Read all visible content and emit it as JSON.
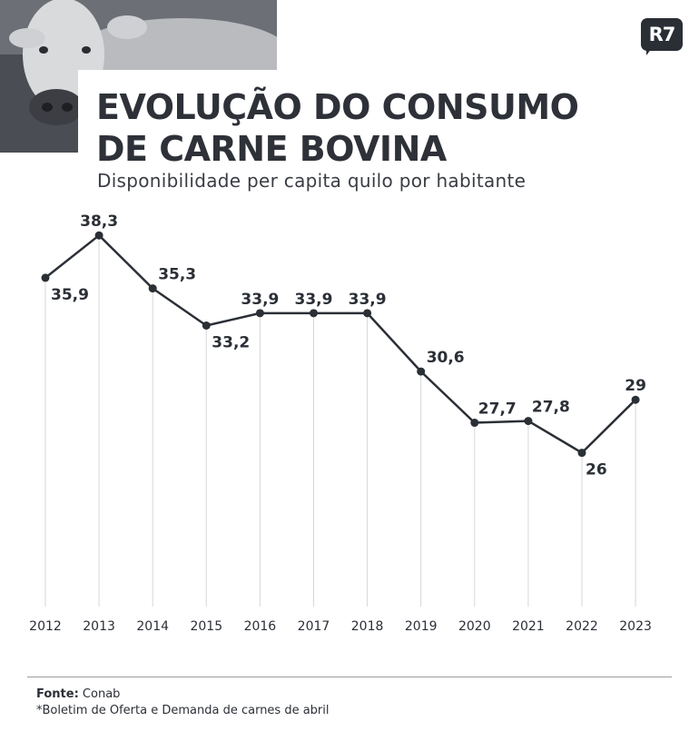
{
  "header": {
    "title": "EVOLUÇÃO DO CONSUMO\nDE CARNE BOVINA",
    "subtitle": "Disponibilidade per capita quilo por habitante"
  },
  "logo": {
    "text": "R7"
  },
  "colors": {
    "line": "#2b2f36",
    "grid": "#d6d7da",
    "text": "#2b2f36"
  },
  "chart_data": {
    "type": "line",
    "x": [
      "2012",
      "2013",
      "2014",
      "2015",
      "2016",
      "2017",
      "2018",
      "2019",
      "2020",
      "2021",
      "2022",
      "2023"
    ],
    "series": [
      {
        "values": [
          35.9,
          38.3,
          35.3,
          33.2,
          33.9,
          33.9,
          33.9,
          30.6,
          27.7,
          27.8,
          26,
          29
        ],
        "labels": [
          "35,9",
          "38,3",
          "35,3",
          "33,2",
          "33,9",
          "33,9",
          "33,9",
          "30,6",
          "27,7",
          "27,8",
          "26",
          "29"
        ],
        "label_positions": [
          "below",
          "above",
          "above",
          "below",
          "above",
          "above",
          "above",
          "above",
          "above",
          "above",
          "below",
          "above"
        ]
      }
    ],
    "title": "EVOLUÇÃO DO CONSUMO DE CARNE BOVINA",
    "subtitle": "Disponibilidade per capita quilo por habitante",
    "xlabel": "",
    "ylabel": "",
    "ylim": [
      17.3,
      39.8
    ],
    "grid": "vertical",
    "legend": "none"
  },
  "footer": {
    "source_label": "Fonte:",
    "source": "Conab",
    "note": "*Boletim de Oferta e Demanda de carnes de abril"
  }
}
